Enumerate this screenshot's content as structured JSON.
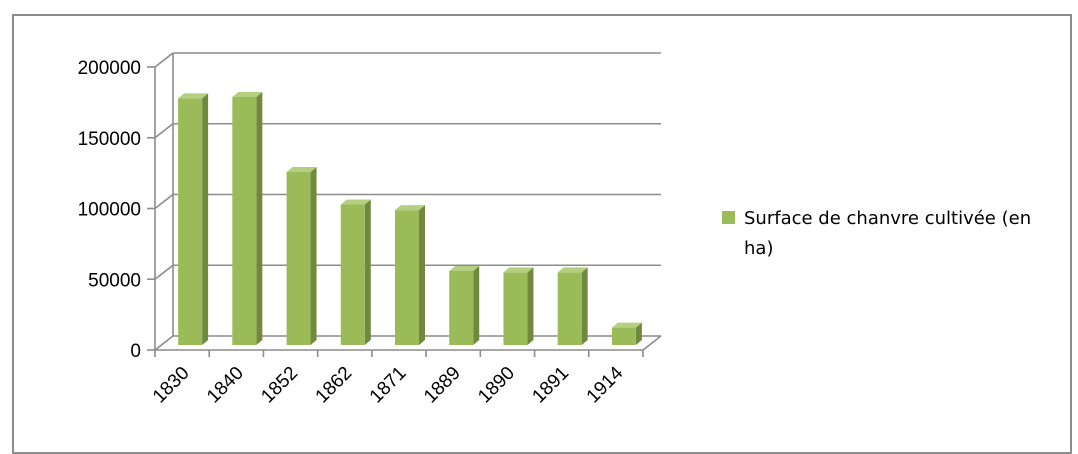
{
  "chart_data": {
    "type": "bar",
    "style": "3d-column",
    "title": "",
    "xlabel": "",
    "ylabel": "",
    "categories": [
      "1830",
      "1840",
      "1852",
      "1862",
      "1871",
      "1889",
      "1890",
      "1891",
      "1914"
    ],
    "series": [
      {
        "name": "Surface de chanvre cultivée (en ha)",
        "values": [
          175000,
          176000,
          123000,
          100000,
          96000,
          53000,
          52000,
          52000,
          13000
        ],
        "color": "#9bbb59"
      }
    ],
    "ylim": [
      0,
      200000
    ],
    "yticks": [
      "0",
      "50000",
      "100000",
      "150000",
      "200000"
    ],
    "grid": true,
    "legend_position": "right"
  },
  "colors": {
    "bar_front": "#9bbb59",
    "bar_side": "#71893f",
    "bar_top": "#b5cf80",
    "grid": "#8c8c8c",
    "frame": "#8c8c8c"
  }
}
